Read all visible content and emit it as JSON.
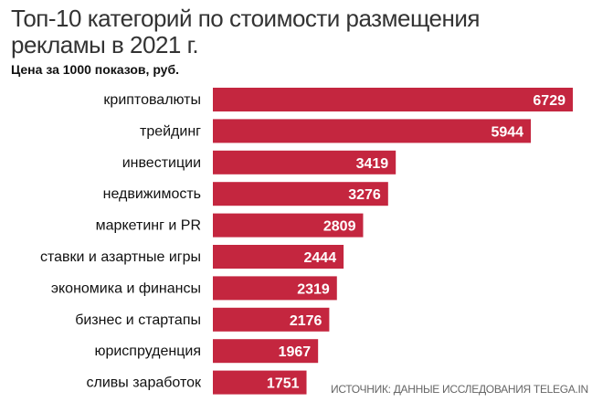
{
  "chart_data": {
    "type": "bar",
    "orientation": "horizontal",
    "title": "Топ-10 категорий по стоимости размещения\n рекламы в 2021 г.",
    "subtitle": "Цена за 1000 показов, руб.",
    "source": "ИСТОЧНИК: ДАННЫЕ ИССЛЕДОВАНИЯ TELEGA.IN",
    "categories": [
      "криптовалюты",
      "трейдинг",
      "инвестиции",
      "недвижимость",
      "маркетинг и PR",
      "ставки и азартные игры",
      "экономика и финансы",
      "бизнес и стартапы",
      "юриспруденция",
      "сливы заработок"
    ],
    "values": [
      6729,
      5944,
      3419,
      3276,
      2809,
      2444,
      2319,
      2176,
      1967,
      1751
    ],
    "bar_color": "#c4263f",
    "grid": false,
    "data_labels": true
  }
}
